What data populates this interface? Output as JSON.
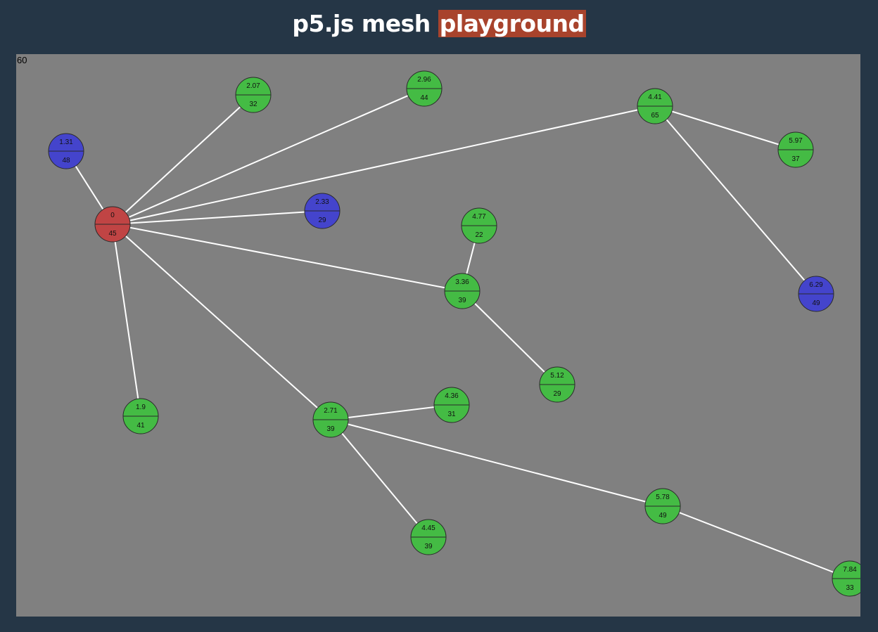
{
  "title": {
    "prefix": "p5.js mesh",
    "highlight": "playground"
  },
  "canvas": {
    "fps": "60"
  },
  "colors": {
    "background": "#253646",
    "canvas": "#808080",
    "root": "#c04444",
    "leaf": "#44bb44",
    "special": "#4444cc",
    "edge": "#ffffff",
    "title_highlight": "#a8432c"
  },
  "chart_data": {
    "type": "network",
    "nodes": [
      {
        "id": "n0",
        "top": "0",
        "bottom": "45",
        "kind": "root"
      },
      {
        "id": "n1",
        "top": "1.31",
        "bottom": "48",
        "kind": "special"
      },
      {
        "id": "n2",
        "top": "2.07",
        "bottom": "32",
        "kind": "leaf"
      },
      {
        "id": "n3",
        "top": "2.96",
        "bottom": "44",
        "kind": "leaf"
      },
      {
        "id": "n4",
        "top": "4.41",
        "bottom": "65",
        "kind": "leaf"
      },
      {
        "id": "n5",
        "top": "5.97",
        "bottom": "37",
        "kind": "leaf"
      },
      {
        "id": "n6",
        "top": "2.33",
        "bottom": "29",
        "kind": "special"
      },
      {
        "id": "n7",
        "top": "4.77",
        "bottom": "22",
        "kind": "leaf"
      },
      {
        "id": "n8",
        "top": "3.36",
        "bottom": "39",
        "kind": "leaf"
      },
      {
        "id": "n9",
        "top": "6.29",
        "bottom": "49",
        "kind": "special"
      },
      {
        "id": "n10",
        "top": "5.12",
        "bottom": "29",
        "kind": "leaf"
      },
      {
        "id": "n11",
        "top": "1.9",
        "bottom": "41",
        "kind": "leaf"
      },
      {
        "id": "n12",
        "top": "4.36",
        "bottom": "31",
        "kind": "leaf"
      },
      {
        "id": "n13",
        "top": "2.71",
        "bottom": "39",
        "kind": "leaf"
      },
      {
        "id": "n14",
        "top": "4.45",
        "bottom": "39",
        "kind": "leaf"
      },
      {
        "id": "n15",
        "top": "5.78",
        "bottom": "49",
        "kind": "leaf"
      },
      {
        "id": "n16",
        "top": "7.84",
        "bottom": "33",
        "kind": "leaf"
      }
    ],
    "edges": [
      [
        "n0",
        "n1"
      ],
      [
        "n0",
        "n2"
      ],
      [
        "n0",
        "n3"
      ],
      [
        "n0",
        "n4"
      ],
      [
        "n0",
        "n6"
      ],
      [
        "n0",
        "n8"
      ],
      [
        "n0",
        "n11"
      ],
      [
        "n0",
        "n13"
      ],
      [
        "n4",
        "n5"
      ],
      [
        "n4",
        "n9"
      ],
      [
        "n8",
        "n7"
      ],
      [
        "n8",
        "n10"
      ],
      [
        "n13",
        "n12"
      ],
      [
        "n13",
        "n14"
      ],
      [
        "n13",
        "n15"
      ],
      [
        "n15",
        "n16"
      ]
    ]
  }
}
